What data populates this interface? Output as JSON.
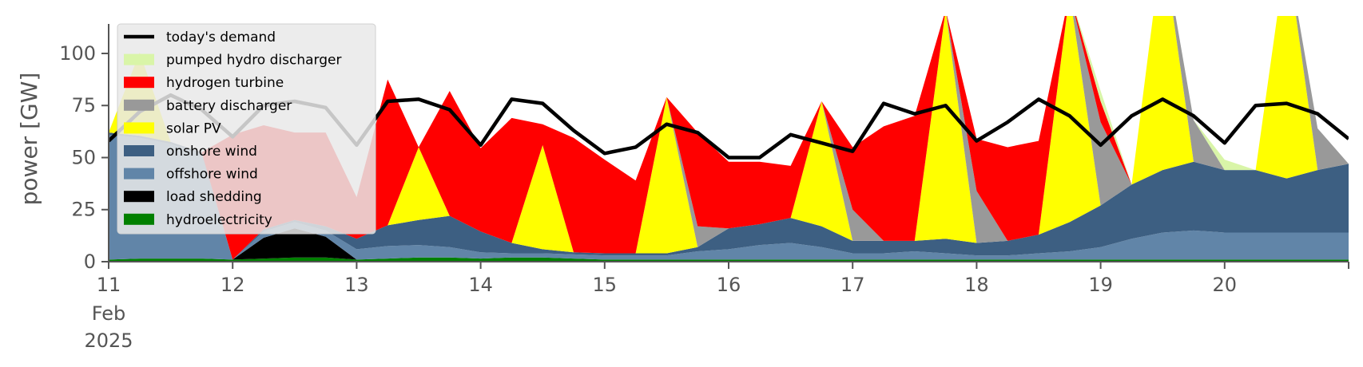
{
  "chart_data": {
    "type": "area",
    "ylabel": "power [GW]",
    "ylim": [
      0,
      118
    ],
    "xlim": [
      0,
      240
    ],
    "grid": false,
    "legend_position": "top-left",
    "x_ticks": [
      {
        "x": 0,
        "label": "11",
        "sub": [
          "Feb",
          "2025"
        ]
      },
      {
        "x": 24,
        "label": "12"
      },
      {
        "x": 48,
        "label": "13"
      },
      {
        "x": 72,
        "label": "14"
      },
      {
        "x": 96,
        "label": "15"
      },
      {
        "x": 120,
        "label": "16"
      },
      {
        "x": 144,
        "label": "17"
      },
      {
        "x": 168,
        "label": "18"
      },
      {
        "x": 192,
        "label": "19"
      },
      {
        "x": 216,
        "label": "20"
      }
    ],
    "y_ticks": [
      0,
      25,
      50,
      75,
      100
    ],
    "legend": [
      {
        "label": "today's demand",
        "color": "#000000",
        "kind": "line"
      },
      {
        "label": "pumped hydro discharger",
        "color": "#d9f5a8",
        "kind": "patch"
      },
      {
        "label": "hydrogen turbine",
        "color": "#ff0000",
        "kind": "patch"
      },
      {
        "label": "battery discharger",
        "color": "#999999",
        "kind": "patch"
      },
      {
        "label": "solar PV",
        "color": "#ffff00",
        "kind": "patch"
      },
      {
        "label": "onshore wind",
        "color": "#3d5f82",
        "kind": "patch"
      },
      {
        "label": "offshore wind",
        "color": "#6185a8",
        "kind": "patch"
      },
      {
        "label": "load shedding",
        "color": "#000000",
        "kind": "patch"
      },
      {
        "label": "hydroelectricity",
        "color": "#008000",
        "kind": "patch"
      }
    ],
    "x": [
      0,
      6,
      12,
      18,
      24,
      30,
      36,
      42,
      48,
      54,
      60,
      66,
      72,
      78,
      84,
      90,
      96,
      102,
      108,
      114,
      120,
      126,
      132,
      138,
      144,
      150,
      156,
      162,
      168,
      174,
      180,
      186,
      192,
      198,
      204,
      210,
      216,
      222,
      228,
      234,
      240
    ],
    "series": [
      {
        "name": "hydroelectricity",
        "color": "#008000",
        "values": [
          1,
          1.5,
          1.5,
          1.5,
          1,
          1.5,
          2,
          2,
          1,
          1.5,
          2,
          2,
          1.5,
          2,
          2,
          1.5,
          1,
          1,
          1,
          1,
          1,
          1,
          1,
          1,
          1,
          1,
          1,
          1,
          1,
          1,
          1,
          1,
          1,
          1,
          1,
          1,
          1,
          1,
          1,
          1,
          1
        ]
      },
      {
        "name": "load shedding",
        "color": "#000000",
        "values": [
          0,
          0,
          0,
          0,
          0,
          10,
          14,
          10,
          0,
          0,
          0,
          0,
          0,
          0,
          0,
          0,
          0,
          0,
          0,
          0,
          0,
          0,
          0,
          0,
          0,
          0,
          0,
          0,
          0,
          0,
          0,
          0,
          0,
          0,
          0,
          0,
          0,
          0,
          0,
          0,
          0
        ]
      },
      {
        "name": "offshore wind",
        "color": "#6185a8",
        "values": [
          60,
          58,
          55,
          50,
          0,
          3,
          3,
          3,
          5,
          6,
          6,
          5,
          3,
          2,
          2,
          2,
          2,
          2,
          2,
          4,
          5,
          7,
          8,
          6,
          3,
          3,
          4,
          3,
          2,
          2,
          3,
          4,
          6,
          10,
          13,
          14,
          13,
          13,
          13,
          13,
          13
        ]
      },
      {
        "name": "onshore wind",
        "color": "#3d5f82",
        "values": [
          1,
          1,
          1,
          1,
          0,
          1,
          1,
          2,
          5,
          10,
          12,
          15,
          10,
          5,
          2,
          1,
          1,
          1,
          1,
          2,
          10,
          10,
          12,
          10,
          6,
          6,
          5,
          7,
          6,
          7,
          9,
          14,
          20,
          26,
          30,
          33,
          30,
          30,
          26,
          30,
          33
        ]
      },
      {
        "name": "solar PV",
        "color": "#ffff00",
        "values": [
          0,
          40,
          0,
          0,
          0,
          0,
          0,
          0,
          0,
          0,
          35,
          0,
          0,
          0,
          50,
          0,
          0,
          0,
          75,
          0,
          0,
          0,
          0,
          60,
          0,
          0,
          0,
          110,
          0,
          0,
          0,
          110,
          0,
          0,
          110,
          0,
          0,
          0,
          110,
          0,
          0
        ]
      },
      {
        "name": "battery discharger",
        "color": "#999999",
        "values": [
          0,
          0,
          0,
          0,
          0,
          0,
          0,
          0,
          0,
          0,
          0,
          0,
          0,
          0,
          0,
          0,
          0,
          0,
          0,
          10,
          0,
          0,
          0,
          0,
          15,
          0,
          0,
          0,
          25,
          0,
          0,
          0,
          40,
          0,
          0,
          20,
          0,
          0,
          0,
          20,
          0
        ]
      },
      {
        "name": "hydrogen turbine",
        "color": "#ff0000",
        "values": [
          0,
          0,
          0,
          0,
          60,
          50,
          42,
          45,
          20,
          70,
          0,
          60,
          40,
          60,
          10,
          55,
          45,
          35,
          0,
          45,
          32,
          30,
          25,
          0,
          30,
          55,
          60,
          0,
          25,
          45,
          45,
          0,
          10,
          0,
          0,
          0,
          0,
          0,
          0,
          0,
          0
        ]
      },
      {
        "name": "pumped hydro discharger",
        "color": "#d9f5a8",
        "values": [
          0,
          0,
          0,
          0,
          0,
          0,
          0,
          0,
          0,
          0,
          0,
          0,
          0,
          0,
          0,
          0,
          0,
          0,
          0,
          0,
          0,
          0,
          0,
          0,
          0,
          0,
          0,
          0,
          0,
          0,
          0,
          0,
          5,
          0,
          0,
          0,
          5,
          0,
          0,
          0,
          0
        ]
      },
      {
        "name": "today's demand",
        "color": "#000000",
        "kind": "line",
        "values": [
          58,
          72,
          80,
          73,
          60,
          75,
          77,
          74,
          56,
          77,
          78,
          73,
          56,
          78,
          76,
          63,
          52,
          55,
          66,
          62,
          50,
          50,
          61,
          57,
          53,
          76,
          71,
          75,
          58,
          67,
          78,
          70,
          56,
          70,
          78,
          70,
          57,
          75,
          76,
          71,
          59
        ]
      }
    ]
  }
}
